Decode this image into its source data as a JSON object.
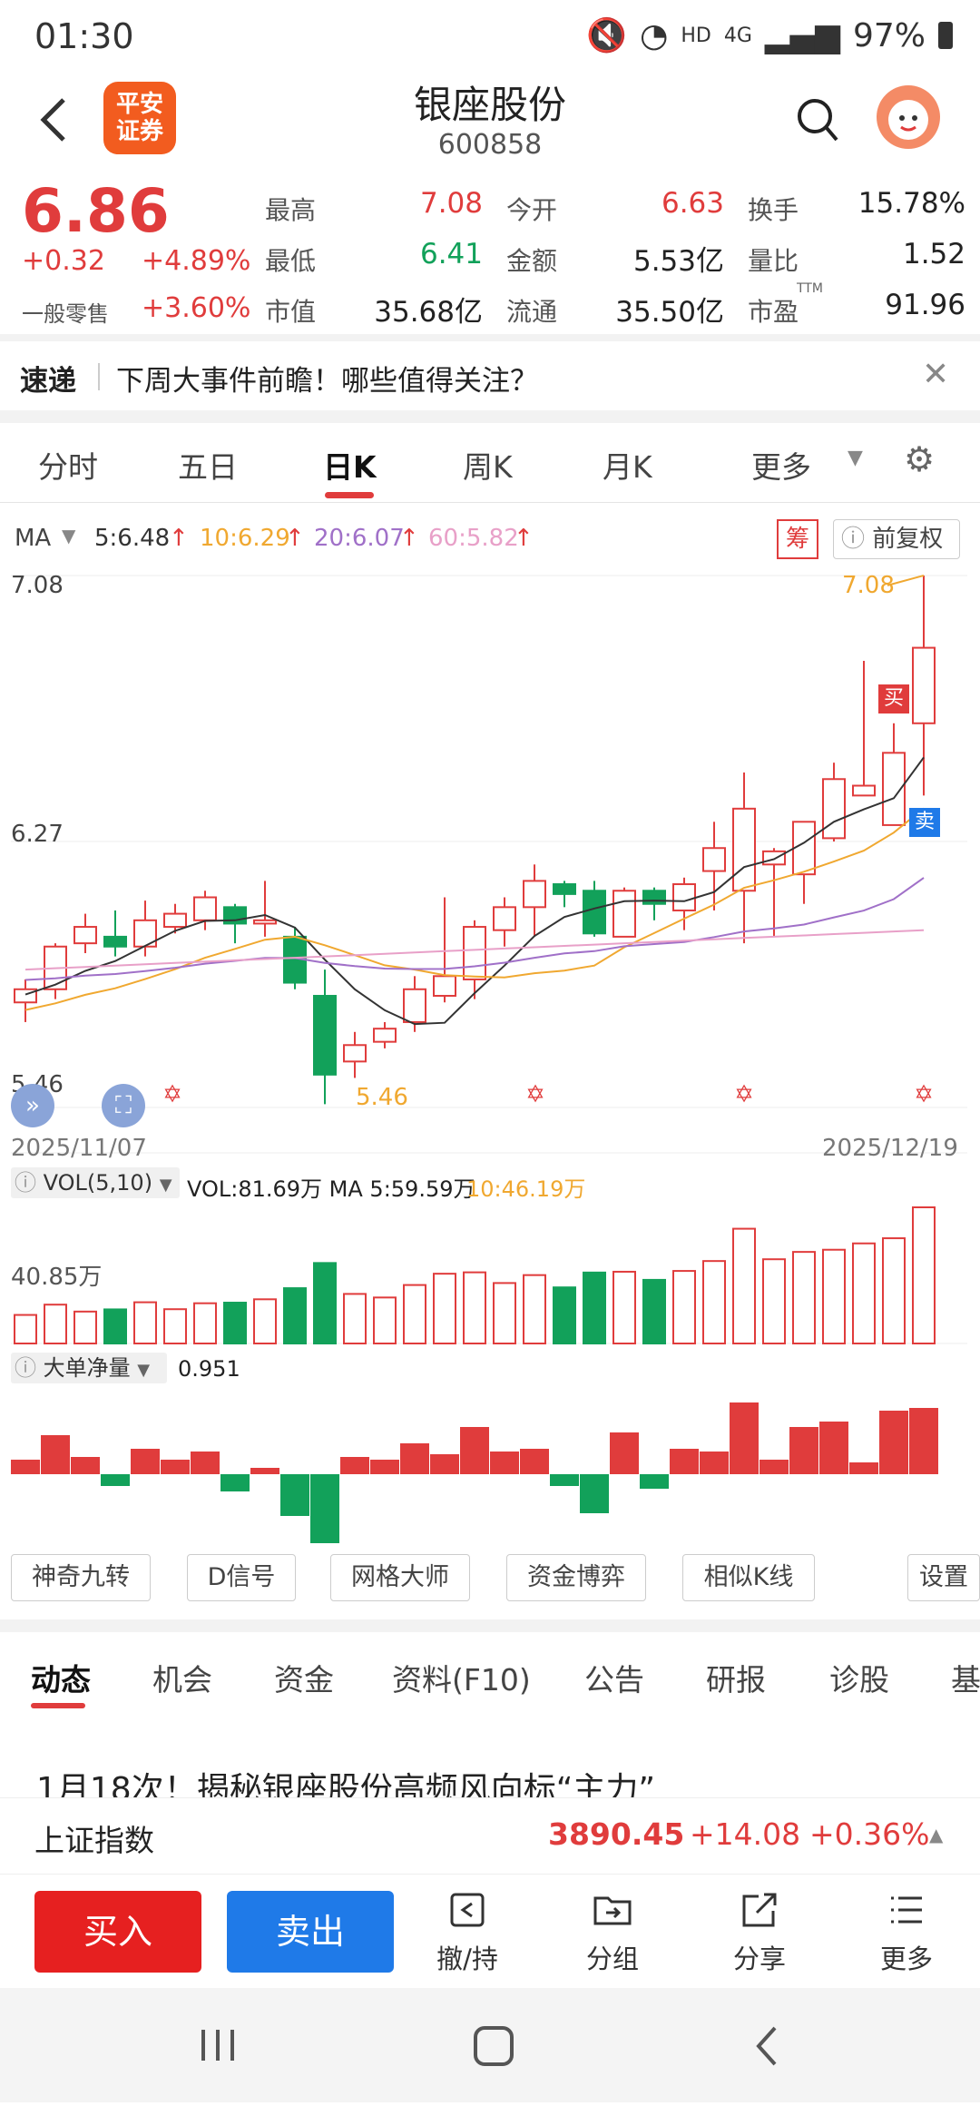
{
  "status": {
    "time": "01:30",
    "battery": "97%",
    "net": "HD",
    "signal": "4G"
  },
  "header": {
    "logo_line1": "平安",
    "logo_line2": "证券",
    "name": "银座股份",
    "code": "600858"
  },
  "quote": {
    "price": "6.86",
    "change": "+0.32",
    "change_pct": "+4.89%",
    "retail_label": "一般零售",
    "retail_pct": "+3.60%",
    "high_label": "最高",
    "high": "7.08",
    "open_label": "今开",
    "open": "6.63",
    "turnover_label": "换手",
    "turnover": "15.78%",
    "low_label": "最低",
    "low": "6.41",
    "amount_label": "金额",
    "amount": "5.53亿",
    "vol_ratio_label": "量比",
    "vol_ratio": "1.52",
    "mcap_label": "市值",
    "mcap": "35.68亿",
    "float_label": "流通",
    "float": "35.50亿",
    "pe_label": "市盈",
    "pe_sup": "TTM",
    "pe": "91.96"
  },
  "news": {
    "tag": "速递",
    "text": "下周大事件前瞻！哪些值得关注？"
  },
  "ktabs": [
    "分时",
    "五日",
    "日K",
    "周K",
    "月K",
    "更多"
  ],
  "ma": {
    "label": "MA",
    "ma5": "5:6.48",
    "ma10": "10:6.29",
    "ma20": "20:6.07",
    "ma60": "60:5.82",
    "chip_btn": "筹",
    "adj_btn": "前复权"
  },
  "chart": {
    "price_top": "7.08",
    "price_mid": "6.27",
    "price_bottom": "5.46",
    "high_mark": "7.08",
    "low_mark": "5.46",
    "date_start": "2025/11/07",
    "date_end": "2025/12/19",
    "buy_mark": "买",
    "sell_mark": "卖",
    "vol_label": "VOL(5,10)",
    "vol_line_a": "VOL:81.69万 MA 5:59.59万",
    "vol_line_b": "10:46.19万",
    "vol_axis": "40.85万",
    "net_label": "大单净量",
    "net_value": "0.951"
  },
  "chart_data": {
    "type": "candlestick",
    "x": [
      "2025/11/07",
      "2025/12/19"
    ],
    "ylim": [
      5.46,
      7.08
    ],
    "candles": [
      {
        "o": 5.78,
        "c": 5.82,
        "h": 5.85,
        "l": 5.72
      },
      {
        "o": 5.82,
        "c": 5.95,
        "h": 5.96,
        "l": 5.79
      },
      {
        "o": 5.96,
        "c": 6.01,
        "h": 6.05,
        "l": 5.93
      },
      {
        "o": 5.98,
        "c": 5.95,
        "h": 6.06,
        "l": 5.92
      },
      {
        "o": 5.95,
        "c": 6.03,
        "h": 6.09,
        "l": 5.92
      },
      {
        "o": 6.01,
        "c": 6.05,
        "h": 6.08,
        "l": 5.99
      },
      {
        "o": 6.03,
        "c": 6.1,
        "h": 6.12,
        "l": 6.0
      },
      {
        "o": 6.07,
        "c": 6.02,
        "h": 6.08,
        "l": 5.96
      },
      {
        "o": 6.02,
        "c": 6.03,
        "h": 6.15,
        "l": 5.98
      },
      {
        "o": 5.98,
        "c": 5.84,
        "h": 6.01,
        "l": 5.82
      },
      {
        "o": 5.8,
        "c": 5.56,
        "h": 5.88,
        "l": 5.47
      },
      {
        "o": 5.6,
        "c": 5.65,
        "h": 5.69,
        "l": 5.55
      },
      {
        "o": 5.66,
        "c": 5.7,
        "h": 5.72,
        "l": 5.64
      },
      {
        "o": 5.72,
        "c": 5.82,
        "h": 5.86,
        "l": 5.69
      },
      {
        "o": 5.8,
        "c": 5.86,
        "h": 6.1,
        "l": 5.78
      },
      {
        "o": 5.85,
        "c": 6.01,
        "h": 6.03,
        "l": 5.79
      },
      {
        "o": 6.0,
        "c": 6.07,
        "h": 6.1,
        "l": 5.95
      },
      {
        "o": 6.07,
        "c": 6.15,
        "h": 6.2,
        "l": 5.98
      },
      {
        "o": 6.14,
        "c": 6.11,
        "h": 6.15,
        "l": 6.07
      },
      {
        "o": 6.12,
        "c": 5.99,
        "h": 6.15,
        "l": 5.98
      },
      {
        "o": 5.98,
        "c": 6.12,
        "h": 6.13,
        "l": 5.98
      },
      {
        "o": 6.12,
        "c": 6.08,
        "h": 6.13,
        "l": 6.03
      },
      {
        "o": 6.06,
        "c": 6.14,
        "h": 6.16,
        "l": 6.0
      },
      {
        "o": 6.18,
        "c": 6.25,
        "h": 6.33,
        "l": 6.06
      },
      {
        "o": 6.12,
        "c": 6.37,
        "h": 6.48,
        "l": 5.96
      },
      {
        "o": 6.2,
        "c": 6.24,
        "h": 6.25,
        "l": 5.98
      },
      {
        "o": 6.17,
        "c": 6.33,
        "h": 6.33,
        "l": 6.08
      },
      {
        "o": 6.28,
        "c": 6.46,
        "h": 6.51,
        "l": 6.27
      },
      {
        "o": 6.41,
        "c": 6.44,
        "h": 6.82,
        "l": 6.41
      },
      {
        "o": 6.32,
        "c": 6.54,
        "h": 6.63,
        "l": 6.32
      },
      {
        "o": 6.63,
        "c": 6.86,
        "h": 7.08,
        "l": 6.41
      }
    ],
    "volume_unit": "万",
    "net_flow": "0.951"
  },
  "tools": [
    "神奇九转",
    "D信号",
    "网格大师",
    "资金博弈",
    "相似K线",
    "设置"
  ],
  "btabs": [
    "动态",
    "机会",
    "资金",
    "资料(F10)",
    "公告",
    "研报",
    "诊股",
    "基"
  ],
  "article": "1月18次！揭秘银座股份高频风向标“主力”",
  "index": {
    "name": "上证指数",
    "value": "3890.45",
    "change": "+14.08",
    "pct": "+0.36%"
  },
  "bottom": {
    "buy": "买入",
    "sell": "卖出",
    "withdraw": "撤/持",
    "group": "分组",
    "share": "分享",
    "more": "更多"
  },
  "colors": {
    "up": "#e03c3c",
    "down": "#12a15a",
    "ma5": "#333333",
    "ma10": "#f0a830",
    "ma20": "#a070c8",
    "ma60": "#e8a0c8",
    "buy": "#e62020",
    "sell": "#1f7ae8"
  }
}
